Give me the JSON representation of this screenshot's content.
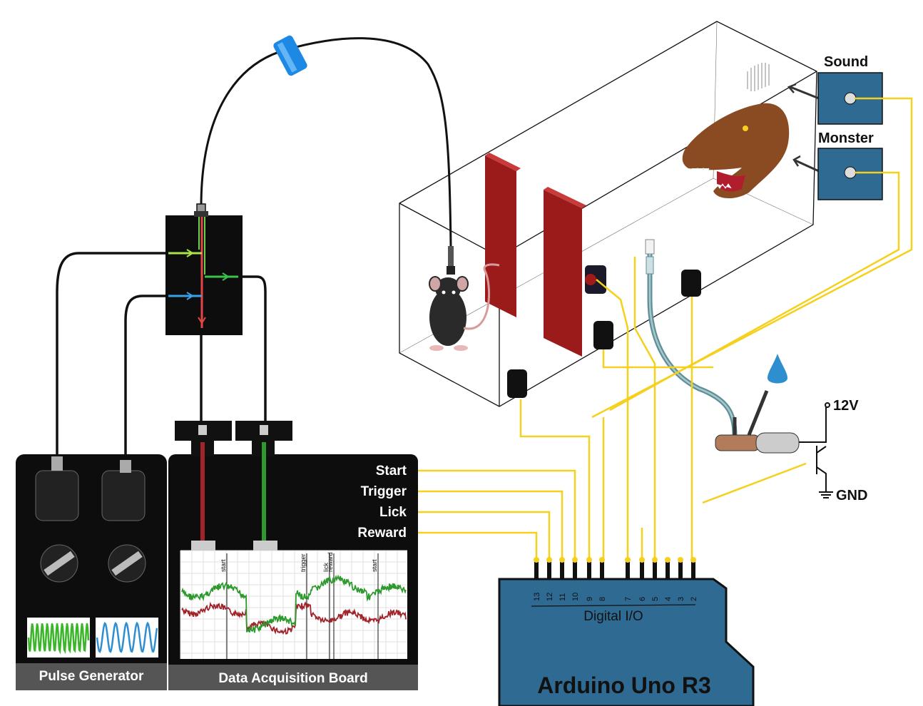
{
  "labels": {
    "sound": "Sound",
    "monster": "Monster",
    "v12": "12V",
    "gnd": "GND",
    "pulse_generator": "Pulse Generator",
    "daq_board": "Data Acquisition Board",
    "arduino": "Arduino Uno R3",
    "digital_io": "Digital I/O"
  },
  "daq_inputs": [
    "Start",
    "Trigger",
    "Lick",
    "Reward"
  ],
  "event_markers": [
    "start",
    "trigger",
    "lick",
    "reward",
    "start"
  ],
  "arduino_pins": [
    "13",
    "12",
    "11",
    "10",
    "9",
    "8",
    "7",
    "6",
    "5",
    "4",
    "3",
    "2"
  ],
  "colors": {
    "wire": "#f5d01c",
    "fiber": "#111111",
    "panel": "#0d0d0d",
    "arduino_blue": "#2f6a93",
    "gate_red": "#9b1b1b",
    "trace_green": "#2e9a2e",
    "trace_red": "#a1242a",
    "wave_green": "#3bb62a",
    "wave_blue": "#2d8fd0",
    "fiber_sleeve": "#1e88e5"
  },
  "icons": [
    "mouse-icon",
    "dinosaur-icon",
    "fiber-sleeve-icon",
    "water-drop-icon",
    "transistor-icon"
  ]
}
